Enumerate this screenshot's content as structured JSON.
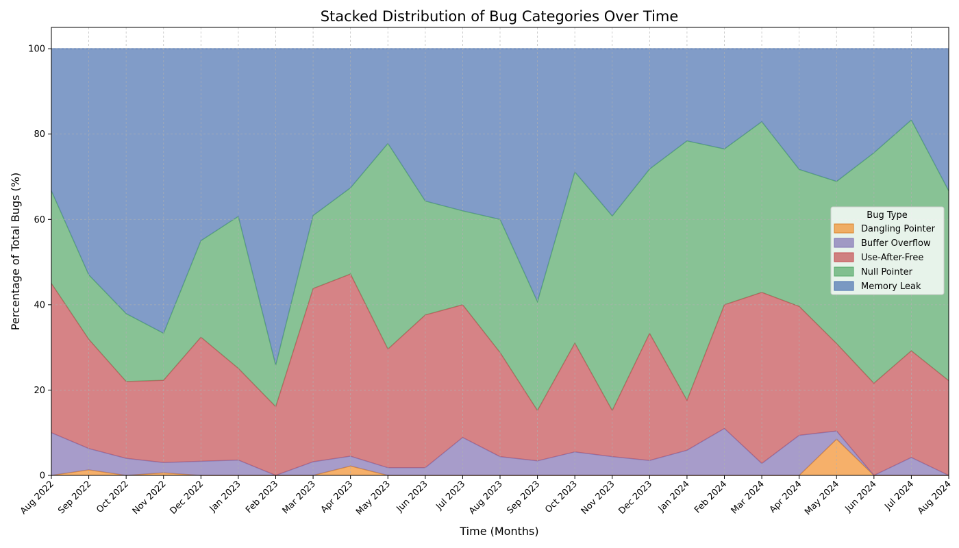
{
  "chart_data": {
    "type": "area",
    "stacked": true,
    "title": "Stacked Distribution of Bug Categories Over Time",
    "xlabel": "Time (Months)",
    "ylabel": "Percentage of Total Bugs (%)",
    "ylim": [
      0,
      105
    ],
    "yticks": [
      0,
      20,
      40,
      60,
      80,
      100
    ],
    "grid": true,
    "legend": {
      "title": "Bug Type",
      "placement": "center-right"
    },
    "categories": [
      "Aug 2022",
      "Sep 2022",
      "Oct 2022",
      "Nov 2022",
      "Dec 2022",
      "Jan 2023",
      "Feb 2023",
      "Mar 2023",
      "Apr 2023",
      "May 2023",
      "Jun 2023",
      "Jul 2023",
      "Aug 2023",
      "Sep 2023",
      "Oct 2023",
      "Nov 2023",
      "Dec 2023",
      "Jan 2024",
      "Feb 2024",
      "Mar 2024",
      "Apr 2024",
      "May 2024",
      "Jun 2024",
      "Jul 2024",
      "Aug 2024"
    ],
    "series": [
      {
        "name": "Dangling Pointer",
        "fill": "#f28e2b",
        "line": "#d9822b",
        "values": [
          0.0,
          1.3,
          0.0,
          0.6,
          0.0,
          0.0,
          0.0,
          0.0,
          2.2,
          0.0,
          0.0,
          0.0,
          0.0,
          0.0,
          0.0,
          0.0,
          0.0,
          0.0,
          0.0,
          0.0,
          0.0,
          8.5,
          0.0,
          0.0,
          0.0
        ]
      },
      {
        "name": "Buffer Overflow",
        "fill": "#8172b3",
        "line": "#8172b3",
        "values": [
          10.0,
          5.0,
          4.0,
          2.4,
          3.3,
          3.6,
          0.0,
          3.2,
          2.3,
          1.8,
          1.8,
          8.9,
          4.4,
          3.4,
          5.5,
          4.4,
          3.5,
          5.9,
          11.0,
          2.8,
          9.4,
          1.9,
          0.0,
          4.2,
          0.0
        ]
      },
      {
        "name": "Use-After-Free",
        "fill": "#c44e52",
        "line": "#c44e52",
        "values": [
          35.0,
          25.6,
          18.0,
          19.3,
          29.1,
          21.5,
          16.1,
          40.6,
          42.7,
          27.8,
          35.8,
          31.1,
          24.4,
          11.8,
          25.5,
          10.8,
          29.8,
          11.7,
          29.0,
          40.1,
          30.2,
          20.5,
          21.6,
          25.0,
          22.2
        ]
      },
      {
        "name": "Null Pointer",
        "fill": "#55a868",
        "line": "#55a868",
        "values": [
          21.7,
          15.1,
          15.9,
          11.0,
          22.6,
          35.6,
          9.7,
          17.1,
          20.2,
          48.2,
          26.7,
          22.0,
          31.2,
          25.5,
          40.1,
          45.6,
          38.5,
          60.8,
          36.5,
          40.0,
          32.1,
          38.0,
          54.0,
          54.1,
          44.5
        ]
      },
      {
        "name": "Memory Leak",
        "fill": "#4c72b0",
        "line": "#4c72b0",
        "values": [
          33.3,
          53.0,
          62.1,
          66.7,
          45.0,
          39.3,
          74.2,
          39.1,
          32.6,
          22.2,
          35.7,
          38.0,
          40.0,
          59.3,
          28.9,
          39.2,
          28.2,
          21.6,
          23.5,
          17.1,
          28.3,
          31.1,
          24.4,
          16.7,
          33.3
        ]
      }
    ]
  }
}
